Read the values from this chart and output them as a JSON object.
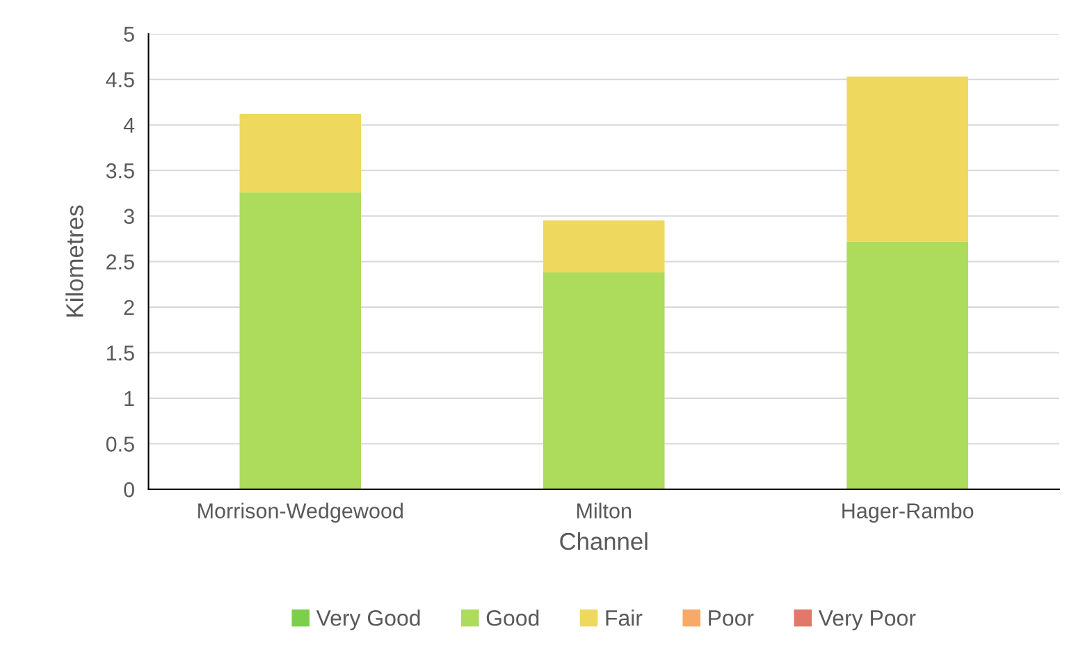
{
  "chart_data": {
    "type": "bar",
    "stacked": true,
    "xlabel": "Channel",
    "ylabel": "Kilometres",
    "categories": [
      "Morrison-Wedgewood",
      "Milton",
      "Hager-Rambo"
    ],
    "series": [
      {
        "name": "Very Good",
        "color": "#7ccf4a",
        "values": [
          0,
          0,
          0
        ]
      },
      {
        "name": "Good",
        "color": "#addb5c",
        "values": [
          3.26,
          2.38,
          2.72
        ]
      },
      {
        "name": "Fair",
        "color": "#eed85e",
        "values": [
          0.86,
          0.57,
          1.81
        ]
      },
      {
        "name": "Poor",
        "color": "#f7aa68",
        "values": [
          0,
          0,
          0
        ]
      },
      {
        "name": "Very Poor",
        "color": "#e2776a",
        "values": [
          0,
          0,
          0
        ]
      }
    ],
    "ylim": [
      0,
      5
    ],
    "yticks": [
      0,
      0.5,
      1,
      1.5,
      2,
      2.5,
      3,
      3.5,
      4,
      4.5,
      5
    ],
    "grid": "y",
    "legend": "bottom"
  }
}
